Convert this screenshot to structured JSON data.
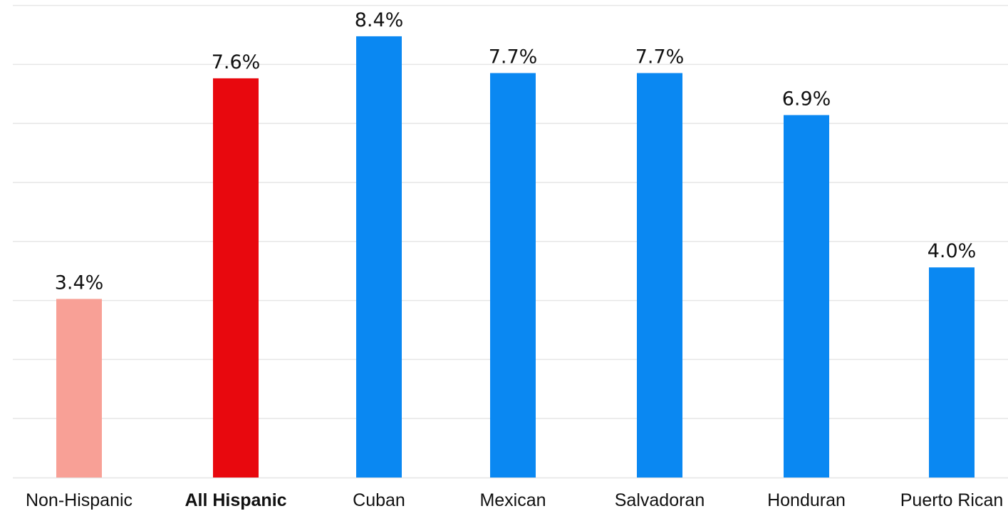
{
  "chart_data": {
    "type": "bar",
    "categories": [
      "Non-Hispanic",
      "All Hispanic",
      "Cuban",
      "Mexican",
      "Salvadoran",
      "Honduran",
      "Puerto Rican"
    ],
    "values": [
      3.4,
      7.6,
      8.4,
      7.7,
      7.7,
      6.9,
      4.0
    ],
    "value_labels": [
      "3.4%",
      "7.6%",
      "8.4%",
      "7.7%",
      "7.7%",
      "6.9%",
      "4.0%"
    ],
    "bar_colors": [
      "#f8a096",
      "#e8080e",
      "#0a88f2",
      "#0a88f2",
      "#0a88f2",
      "#0a88f2",
      "#0a88f2"
    ],
    "emphasized_category": "All Hispanic",
    "ylim": [
      0,
      8
    ],
    "grid": true,
    "gridline_color": "#e6e6e6",
    "legend": "none",
    "title": "",
    "xlabel": "",
    "ylabel": ""
  }
}
